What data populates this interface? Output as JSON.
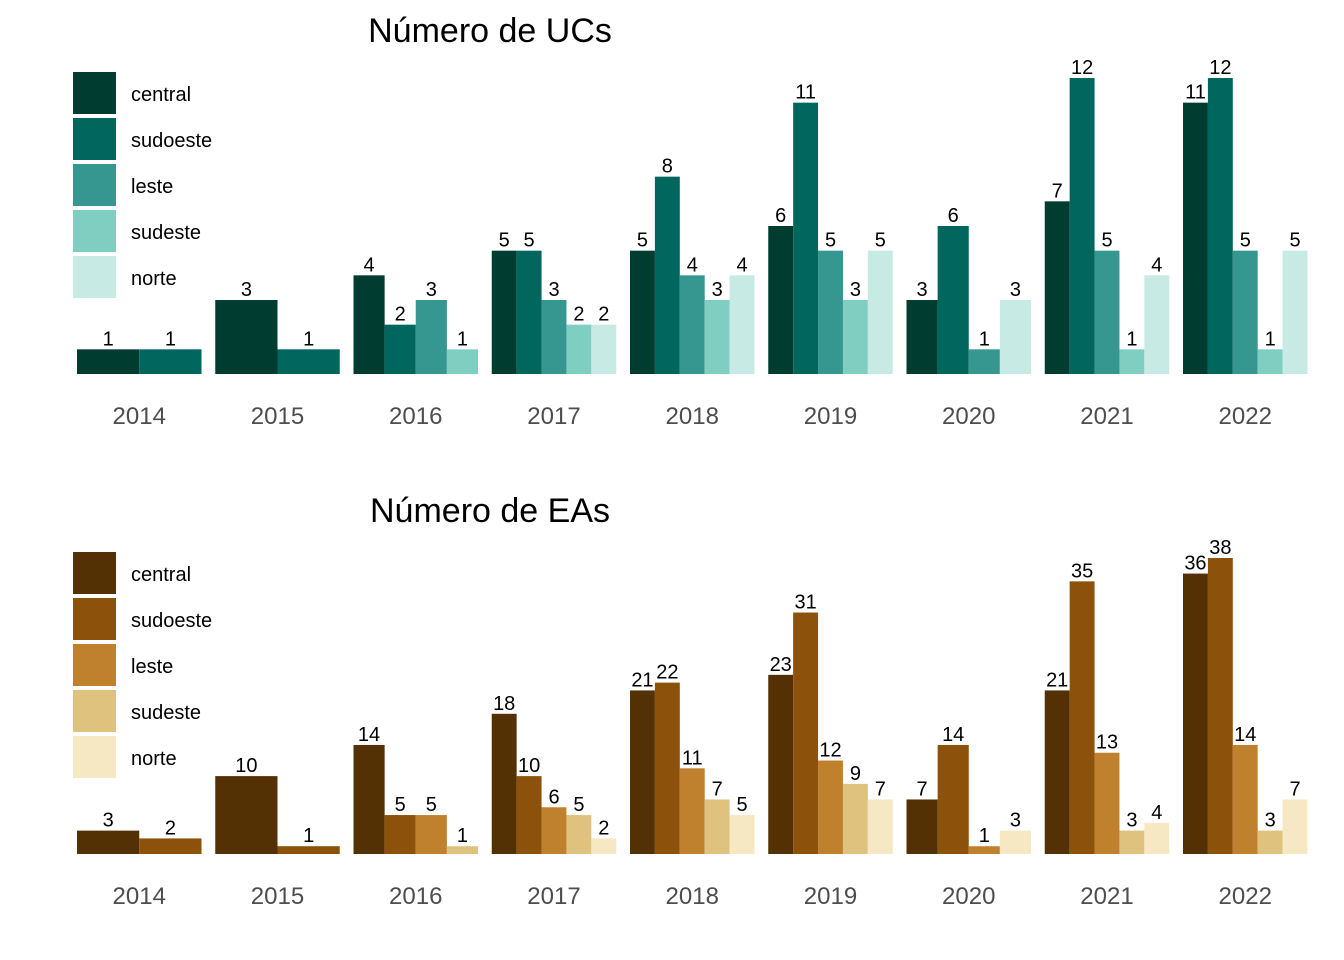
{
  "chart_data": [
    {
      "type": "bar",
      "title": "Número de UCs",
      "categories": [
        "2014",
        "2015",
        "2016",
        "2017",
        "2018",
        "2019",
        "2020",
        "2021",
        "2022"
      ],
      "legend_position": "top-left",
      "grid": false,
      "ylim": [
        0,
        12
      ],
      "series": [
        {
          "name": "central",
          "color": "#003c30",
          "values": [
            1,
            3,
            4,
            5,
            5,
            6,
            3,
            7,
            11
          ]
        },
        {
          "name": "sudoeste",
          "color": "#01665e",
          "values": [
            1,
            1,
            2,
            5,
            8,
            11,
            6,
            12,
            12
          ]
        },
        {
          "name": "leste",
          "color": "#35978f",
          "values": [
            null,
            null,
            3,
            3,
            4,
            5,
            1,
            5,
            5
          ]
        },
        {
          "name": "sudeste",
          "color": "#80cdc1",
          "values": [
            null,
            null,
            1,
            2,
            3,
            3,
            null,
            1,
            1
          ]
        },
        {
          "name": "norte",
          "color": "#c7eae5",
          "values": [
            null,
            null,
            null,
            2,
            4,
            5,
            3,
            4,
            5
          ]
        }
      ]
    },
    {
      "type": "bar",
      "title": "Número de EAs",
      "categories": [
        "2014",
        "2015",
        "2016",
        "2017",
        "2018",
        "2019",
        "2020",
        "2021",
        "2022"
      ],
      "legend_position": "top-left",
      "grid": false,
      "ylim": [
        0,
        38
      ],
      "series": [
        {
          "name": "central",
          "color": "#543005",
          "values": [
            3,
            10,
            14,
            18,
            21,
            23,
            7,
            21,
            36
          ]
        },
        {
          "name": "sudoeste",
          "color": "#8c510a",
          "values": [
            2,
            1,
            5,
            10,
            22,
            31,
            14,
            35,
            38
          ]
        },
        {
          "name": "leste",
          "color": "#bf812d",
          "values": [
            null,
            null,
            5,
            6,
            11,
            12,
            1,
            13,
            14
          ]
        },
        {
          "name": "sudeste",
          "color": "#dfc27d",
          "values": [
            null,
            null,
            1,
            5,
            7,
            9,
            null,
            3,
            3
          ]
        },
        {
          "name": "norte",
          "color": "#f6e8c3",
          "values": [
            null,
            null,
            null,
            2,
            5,
            7,
            3,
            4,
            7
          ]
        }
      ]
    }
  ]
}
